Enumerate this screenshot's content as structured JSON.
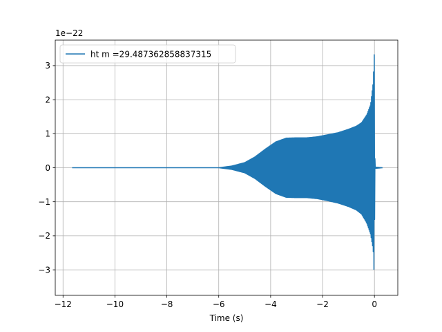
{
  "chart_data": {
    "type": "line",
    "title": "",
    "xlabel": "Time (s)",
    "ylabel": "",
    "y_offset_label": "1e−22",
    "xlim": [
      -12.3,
      0.9
    ],
    "ylim": [
      -3.75,
      3.75
    ],
    "grid": true,
    "legend_position": "upper-left",
    "x_ticks": [
      {
        "value": -12,
        "label": "−12"
      },
      {
        "value": -10,
        "label": "−10"
      },
      {
        "value": -8,
        "label": "−8"
      },
      {
        "value": -6,
        "label": "−6"
      },
      {
        "value": -4,
        "label": "−4"
      },
      {
        "value": -2,
        "label": "−2"
      },
      {
        "value": 0,
        "label": "0"
      }
    ],
    "y_ticks": [
      {
        "value": -3,
        "label": "−3"
      },
      {
        "value": -2,
        "label": "−2"
      },
      {
        "value": -1,
        "label": "−1"
      },
      {
        "value": 0,
        "label": "0"
      },
      {
        "value": 1,
        "label": "1"
      },
      {
        "value": 2,
        "label": "2"
      },
      {
        "value": 3,
        "label": "3"
      }
    ],
    "series": [
      {
        "name": "ht m =29.487362858837315",
        "color": "#1f77b4",
        "x_start": -11.65,
        "x_end": 0.32,
        "envelope": {
          "x": [
            -11.65,
            -7.0,
            -6.0,
            -5.5,
            -5.0,
            -4.6,
            -4.2,
            -3.8,
            -3.4,
            -3.0,
            -2.6,
            -2.2,
            -1.8,
            -1.4,
            -1.0,
            -0.7,
            -0.5,
            -0.3,
            -0.15,
            -0.05,
            0.0,
            0.01,
            0.03,
            0.32
          ],
          "upper": [
            0.0,
            0.0,
            0.0,
            0.05,
            0.15,
            0.32,
            0.55,
            0.76,
            0.87,
            0.88,
            0.88,
            0.91,
            0.97,
            1.03,
            1.13,
            1.22,
            1.32,
            1.55,
            1.85,
            2.5,
            3.45,
            0.5,
            0.02,
            0.0
          ],
          "lower": [
            0.0,
            0.0,
            0.0,
            -0.05,
            -0.15,
            -0.32,
            -0.55,
            -0.76,
            -0.87,
            -0.88,
            -0.88,
            -0.91,
            -0.97,
            -1.04,
            -1.14,
            -1.24,
            -1.36,
            -1.62,
            -1.95,
            -2.4,
            -3.38,
            -0.5,
            -0.02,
            0.0
          ]
        }
      }
    ]
  }
}
